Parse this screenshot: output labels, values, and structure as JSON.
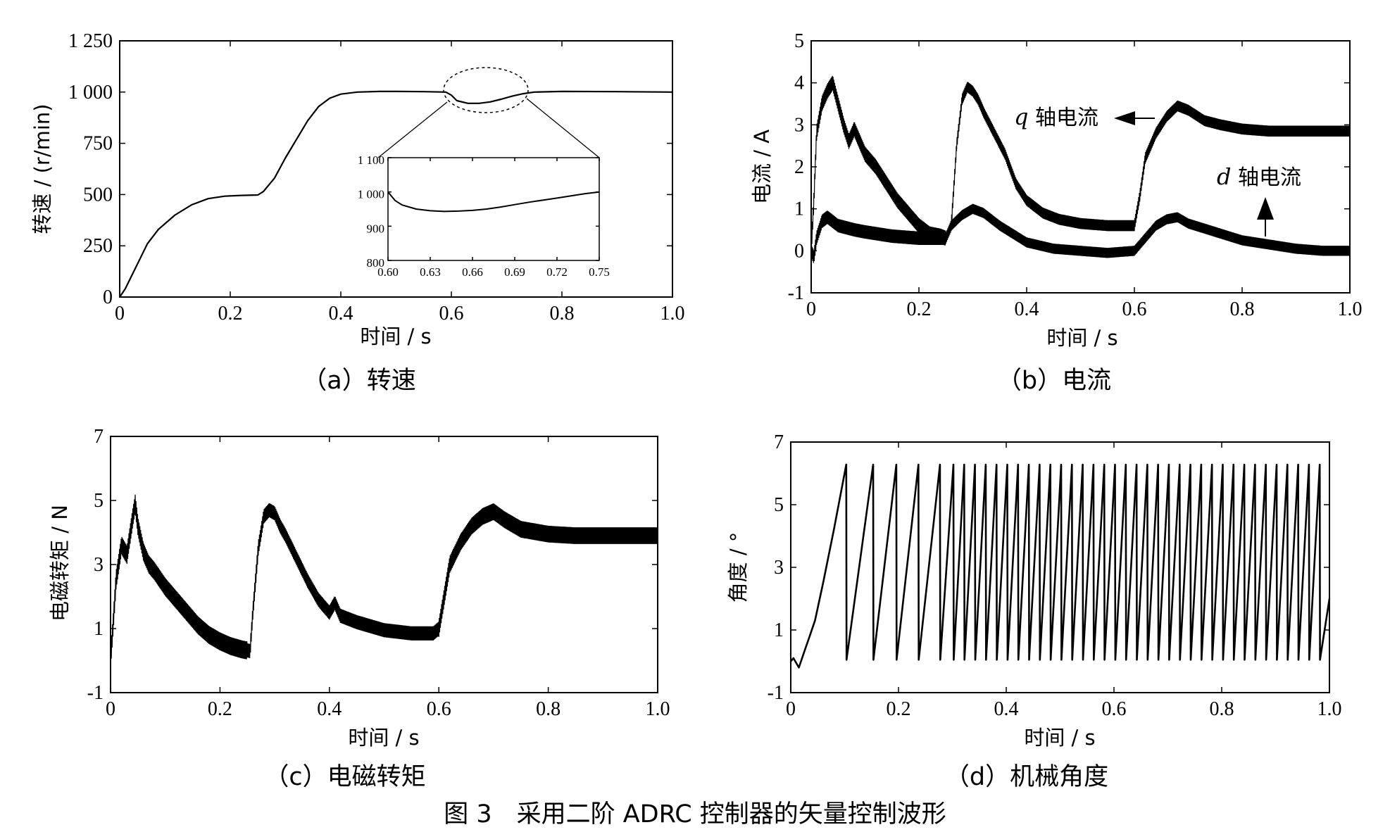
{
  "figure_caption": "图 3　采用二阶 ADRC 控制器的矢量控制波形",
  "chart_data": [
    {
      "id": "a",
      "type": "line",
      "caption": "（a）转速",
      "xlabel": "时间 / s",
      "ylabel": "转速 / (r/min)",
      "xlim": [
        0,
        1.0
      ],
      "ylim": [
        0,
        1250
      ],
      "xticks": [
        "0",
        "0.2",
        "0.4",
        "0.6",
        "0.8",
        "1.0"
      ],
      "yticks": [
        "0",
        "250",
        "500",
        "750",
        "1 000",
        "1 250"
      ],
      "grid": false,
      "series": [
        {
          "x": [
            0,
            0.01,
            0.03,
            0.05,
            0.07,
            0.1,
            0.13,
            0.16,
            0.19,
            0.22,
            0.25,
            0.26,
            0.28,
            0.3,
            0.32,
            0.34,
            0.36,
            0.38,
            0.4,
            0.43,
            0.47,
            0.5,
            0.55,
            0.59,
            0.6,
            0.61,
            0.63,
            0.65,
            0.67,
            0.69,
            0.71,
            0.73,
            0.75,
            0.8,
            0.9,
            1.0
          ],
          "y": [
            0,
            40,
            150,
            260,
            330,
            400,
            450,
            480,
            492,
            496,
            498,
            515,
            580,
            680,
            770,
            860,
            930,
            970,
            990,
            1000,
            1003,
            1003,
            1002,
            1000,
            985,
            958,
            945,
            945,
            952,
            965,
            980,
            992,
            1000,
            1003,
            1002,
            1000
          ]
        }
      ],
      "inset": {
        "xlim": [
          0.6,
          0.75
        ],
        "ylim": [
          800,
          1100
        ],
        "xticks": [
          "0.60",
          "0.63",
          "0.66",
          "0.69",
          "0.72",
          "0.75"
        ],
        "yticks": [
          "800",
          "900",
          "1 000",
          "1 100"
        ],
        "series": [
          {
            "x": [
              0.6,
              0.605,
              0.61,
              0.62,
              0.63,
              0.64,
              0.65,
              0.66,
              0.67,
              0.68,
              0.69,
              0.7,
              0.72,
              0.74,
              0.75
            ],
            "y": [
              1000,
              975,
              962,
              950,
              945,
              943,
              944,
              946,
              950,
              956,
              963,
              970,
              982,
              995,
              1000
            ]
          }
        ]
      }
    },
    {
      "id": "b",
      "type": "line",
      "caption": "（b）电流",
      "xlabel": "时间 / s",
      "ylabel": "电流 / A",
      "xlim": [
        0,
        1.0
      ],
      "ylim": [
        -1,
        5
      ],
      "xticks": [
        "0",
        "0.2",
        "0.4",
        "0.6",
        "0.8",
        "1.0"
      ],
      "yticks": [
        "-1",
        "0",
        "1",
        "2",
        "3",
        "4",
        "5"
      ],
      "grid": false,
      "annotations": [
        {
          "italic": "q",
          "text": " 轴电流"
        },
        {
          "italic": "d",
          "text": " 轴电流"
        }
      ],
      "series": [
        {
          "name": "q 轴电流",
          "x": [
            0,
            0.005,
            0.01,
            0.02,
            0.03,
            0.04,
            0.05,
            0.06,
            0.07,
            0.08,
            0.1,
            0.12,
            0.14,
            0.16,
            0.18,
            0.2,
            0.22,
            0.24,
            0.25,
            0.26,
            0.27,
            0.28,
            0.29,
            0.3,
            0.31,
            0.32,
            0.34,
            0.36,
            0.38,
            0.4,
            0.43,
            0.46,
            0.5,
            0.55,
            0.6,
            0.61,
            0.62,
            0.64,
            0.66,
            0.68,
            0.7,
            0.73,
            0.76,
            0.8,
            0.85,
            0.9,
            0.95,
            1.0
          ],
          "y": [
            0,
            1.2,
            2.8,
            3.5,
            3.8,
            4.0,
            3.5,
            3.0,
            2.6,
            2.9,
            2.3,
            2.0,
            1.6,
            1.2,
            0.9,
            0.6,
            0.4,
            0.35,
            0.3,
            0.6,
            2.5,
            3.6,
            3.9,
            3.8,
            3.6,
            3.3,
            2.8,
            2.3,
            1.6,
            1.2,
            0.9,
            0.75,
            0.65,
            0.6,
            0.6,
            1.3,
            2.2,
            2.8,
            3.2,
            3.45,
            3.35,
            3.1,
            3.0,
            2.9,
            2.85,
            2.85,
            2.85,
            2.85
          ]
        },
        {
          "name": "d 轴电流",
          "x": [
            0,
            0.005,
            0.01,
            0.02,
            0.03,
            0.05,
            0.08,
            0.1,
            0.15,
            0.2,
            0.25,
            0.26,
            0.28,
            0.3,
            0.32,
            0.35,
            0.4,
            0.45,
            0.5,
            0.55,
            0.6,
            0.62,
            0.64,
            0.66,
            0.68,
            0.7,
            0.75,
            0.8,
            0.85,
            0.9,
            0.95,
            1.0
          ],
          "y": [
            0,
            -0.15,
            0.3,
            0.7,
            0.8,
            0.6,
            0.5,
            0.45,
            0.35,
            0.3,
            0.3,
            0.6,
            0.85,
            1.0,
            0.9,
            0.6,
            0.2,
            0.05,
            0.0,
            -0.05,
            0.0,
            0.3,
            0.6,
            0.75,
            0.8,
            0.65,
            0.45,
            0.25,
            0.15,
            0.05,
            0.0,
            0.0
          ]
        }
      ]
    },
    {
      "id": "c",
      "type": "line",
      "caption": "（c）电磁转矩",
      "xlabel": "时间 / s",
      "ylabel": "电磁转矩 / N",
      "xlim": [
        0,
        1.0
      ],
      "ylim": [
        -1,
        7
      ],
      "xticks": [
        "0",
        "0.2",
        "0.4",
        "0.6",
        "0.8",
        "1.0"
      ],
      "yticks": [
        "-1",
        "1",
        "3",
        "5",
        "7"
      ],
      "grid": false,
      "series": [
        {
          "x": [
            0,
            0.005,
            0.01,
            0.02,
            0.03,
            0.04,
            0.045,
            0.05,
            0.06,
            0.07,
            0.08,
            0.1,
            0.12,
            0.14,
            0.16,
            0.18,
            0.2,
            0.22,
            0.24,
            0.255,
            0.26,
            0.27,
            0.28,
            0.29,
            0.3,
            0.31,
            0.32,
            0.34,
            0.36,
            0.38,
            0.4,
            0.41,
            0.42,
            0.45,
            0.5,
            0.55,
            0.59,
            0.6,
            0.61,
            0.62,
            0.64,
            0.66,
            0.68,
            0.7,
            0.72,
            0.75,
            0.8,
            0.85,
            0.9,
            0.95,
            1.0
          ],
          "y": [
            0,
            1.2,
            2.5,
            3.6,
            3.3,
            4.4,
            4.9,
            4.2,
            3.4,
            3.0,
            2.8,
            2.3,
            1.9,
            1.5,
            1.1,
            0.8,
            0.6,
            0.45,
            0.35,
            0.3,
            1.5,
            3.5,
            4.5,
            4.7,
            4.6,
            4.2,
            3.9,
            3.2,
            2.5,
            1.9,
            1.5,
            1.8,
            1.4,
            1.2,
            0.95,
            0.85,
            0.85,
            1.0,
            2.0,
            3.0,
            3.7,
            4.2,
            4.5,
            4.65,
            4.4,
            4.1,
            3.95,
            3.9,
            3.9,
            3.9,
            3.9
          ]
        }
      ]
    },
    {
      "id": "d",
      "type": "line",
      "caption": "（d）机械角度",
      "xlabel": "时间 / s",
      "ylabel": "角度 / °",
      "xlim": [
        0,
        1.0
      ],
      "ylim": [
        -1,
        7
      ],
      "xticks": [
        "0",
        "0.2",
        "0.4",
        "0.6",
        "0.8",
        "1.0"
      ],
      "yticks": [
        "-1",
        "1",
        "3",
        "5",
        "7"
      ],
      "grid": false,
      "series": [
        {
          "sawtooth_wrap_times": [
            0.103,
            0.153,
            0.196,
            0.237,
            0.277,
            0.302,
            0.322,
            0.342,
            0.362,
            0.382,
            0.402,
            0.422,
            0.442,
            0.462,
            0.482,
            0.502,
            0.522,
            0.542,
            0.562,
            0.582,
            0.602,
            0.622,
            0.642,
            0.662,
            0.682,
            0.702,
            0.722,
            0.742,
            0.762,
            0.782,
            0.802,
            0.822,
            0.842,
            0.862,
            0.882,
            0.902,
            0.922,
            0.942,
            0.962,
            0.982
          ],
          "start_x": [
            0,
            0.005,
            0.015,
            0.025,
            0.035,
            0.045,
            0.06,
            0.08,
            0.103
          ],
          "start_y": [
            0,
            0.1,
            -0.2,
            0.3,
            0.8,
            1.3,
            2.5,
            4.2,
            6.28
          ],
          "peak": 6.28,
          "trough": 0.05,
          "end_x": 1.0,
          "end_y": 2.0
        }
      ]
    }
  ]
}
